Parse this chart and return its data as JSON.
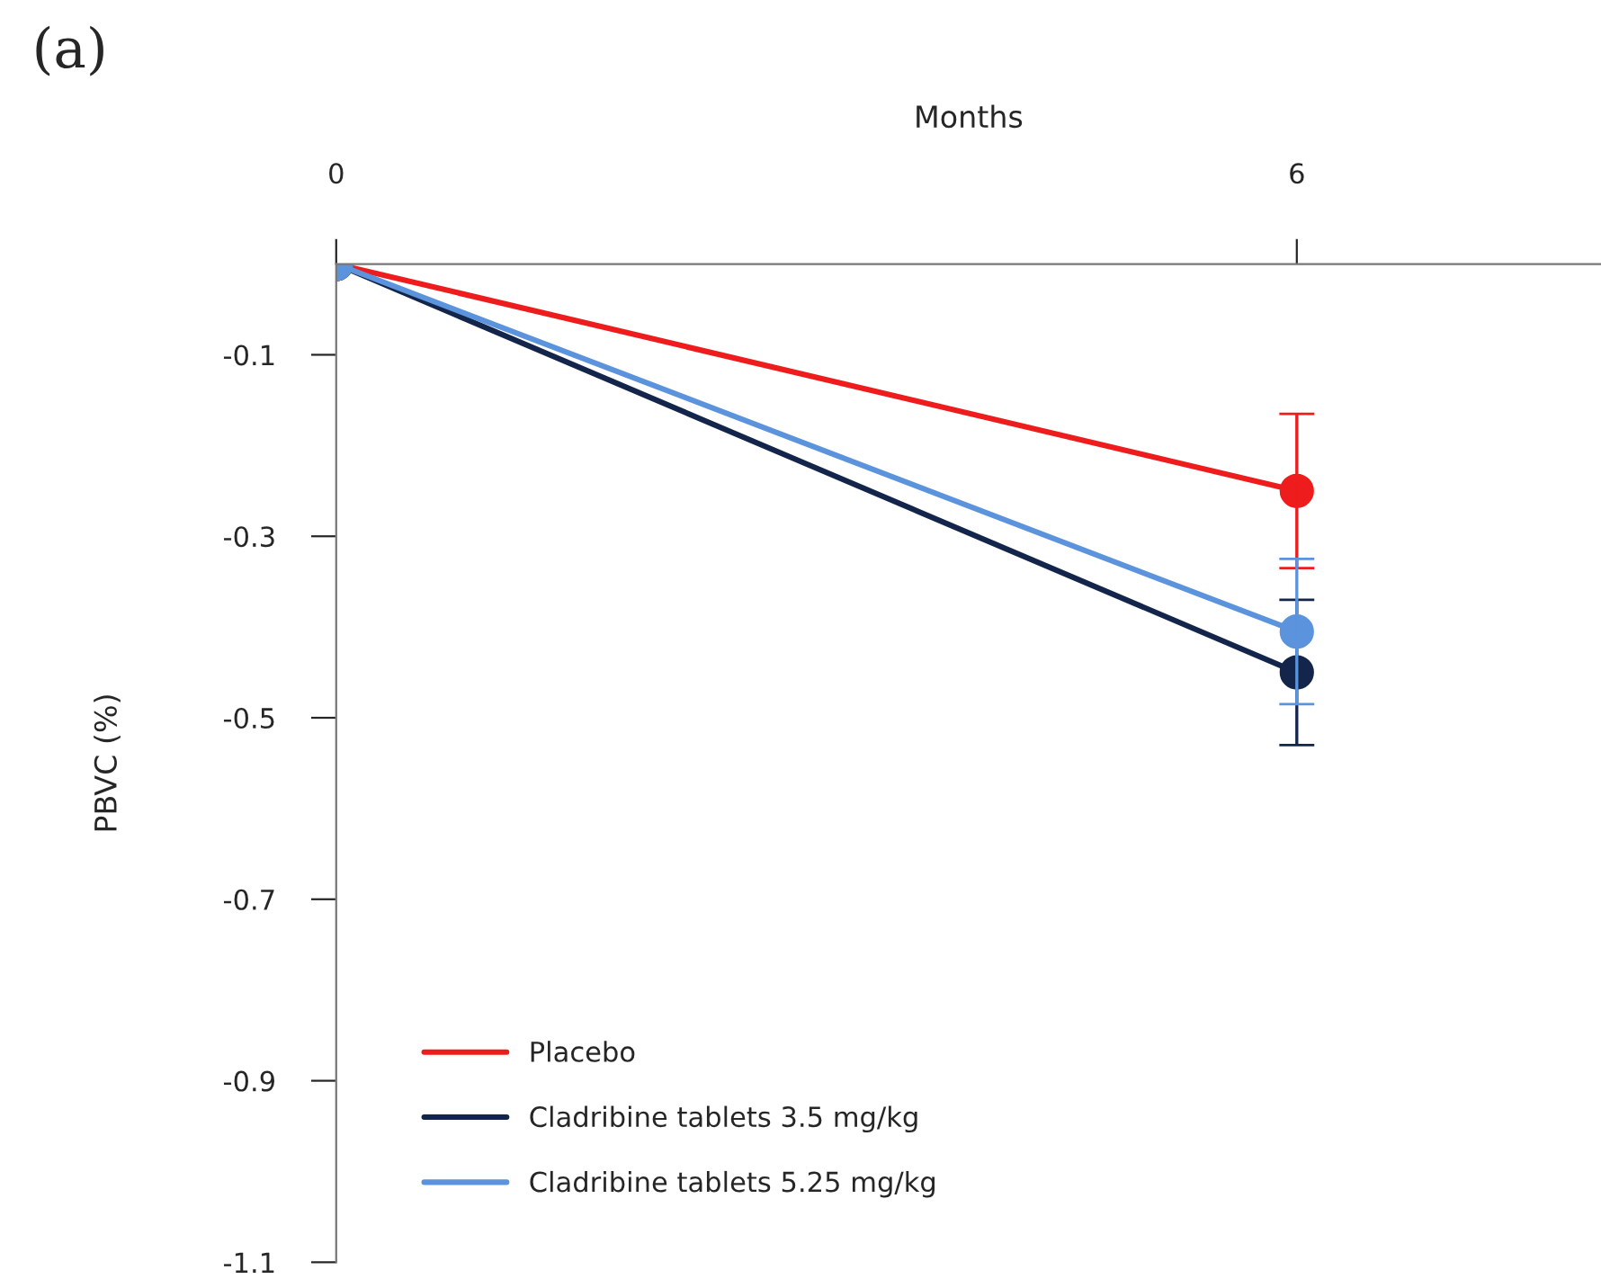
{
  "chart_data": {
    "type": "line",
    "xlabel": "Months",
    "ylabel": "PBVC (%)",
    "annotations": [
      "(a)"
    ],
    "x": [
      0,
      6
    ],
    "xlim": [
      0,
      7.9
    ],
    "xticks": [
      0,
      6
    ],
    "ylim": [
      -1.1,
      0
    ],
    "yticks": [
      -0.1,
      -0.3,
      -0.5,
      -0.7,
      -0.9,
      -1.1
    ],
    "marker": "circle",
    "line_style": "solid",
    "grid": false,
    "legend": "bottom left",
    "series": [
      {
        "name": "Placebo",
        "color": "#ee1c1c",
        "values": [
          0,
          -0.25
        ],
        "errors": [
          null,
          0.085
        ]
      },
      {
        "name": "Cladribine tablets 3.5 mg/kg",
        "color": "#13254a",
        "values": [
          0,
          -0.45
        ],
        "errors": [
          null,
          0.08
        ]
      },
      {
        "name": "Cladribine tablets 5.25 mg/kg",
        "color": "#5b93dc",
        "values": [
          0,
          -0.405
        ],
        "errors": [
          null,
          0.08
        ]
      }
    ]
  }
}
